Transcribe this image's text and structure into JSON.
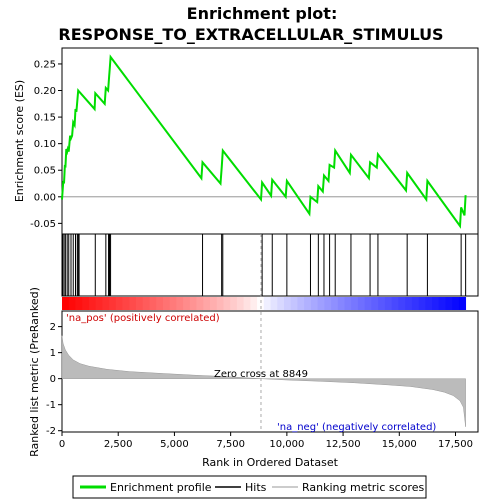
{
  "chart_data": {
    "type": "line",
    "title_line1": "Enrichment plot:",
    "title_line2": "RESPONSE_TO_EXTRACELLULAR_STIMULUS",
    "top_panel": {
      "ylabel": "Enrichment score (ES)",
      "ylim": [
        -0.07,
        0.28
      ],
      "yticks": [
        -0.05,
        0.0,
        0.05,
        0.1,
        0.15,
        0.2,
        0.25
      ],
      "ytick_labels": [
        "-0.05",
        "0.00",
        "0.05",
        "0.10",
        "0.15",
        "0.20",
        "0.25"
      ],
      "es_profile": {
        "x": [
          0,
          60,
          90,
          130,
          150,
          190,
          230,
          260,
          300,
          360,
          400,
          450,
          500,
          560,
          600,
          640,
          680,
          720,
          760,
          800,
          1450,
          1480,
          1900,
          1950,
          2050,
          2070,
          2100,
          2120,
          2160,
          6200,
          6250,
          7050,
          7100,
          7150,
          8849,
          8900,
          9300,
          9350,
          9950,
          10000,
          11000,
          11050,
          11350,
          11400,
          11600,
          11650,
          11850,
          11900,
          12100,
          12150,
          12800,
          12850,
          13650,
          13700,
          14000,
          14050,
          15300,
          15350,
          16200,
          16250,
          17700,
          17750,
          17900,
          17950
        ],
        "y": [
          -0.005,
          0.03,
          0.025,
          0.06,
          0.055,
          0.09,
          0.085,
          0.09,
          0.085,
          0.115,
          0.11,
          0.115,
          0.14,
          0.135,
          0.165,
          0.16,
          0.18,
          0.2,
          0.198,
          0.196,
          0.165,
          0.195,
          0.175,
          0.205,
          0.2,
          0.21,
          0.228,
          0.24,
          0.263,
          0.035,
          0.065,
          0.025,
          0.055,
          0.087,
          -0.005,
          0.027,
          0.002,
          0.032,
          0.0,
          0.03,
          -0.032,
          0.0,
          -0.01,
          0.02,
          0.01,
          0.04,
          0.03,
          0.06,
          0.055,
          0.087,
          0.045,
          0.079,
          0.035,
          0.065,
          0.055,
          0.08,
          0.012,
          0.045,
          -0.005,
          0.03,
          -0.055,
          -0.02,
          -0.035,
          0.003
        ]
      },
      "hits": [
        30,
        90,
        150,
        230,
        300,
        400,
        500,
        600,
        680,
        720,
        760,
        1480,
        1950,
        2070,
        2100,
        2120,
        2160,
        6250,
        7100,
        7150,
        8900,
        9350,
        10000,
        11050,
        11400,
        11650,
        11900,
        12150,
        12850,
        13700,
        14050,
        15350,
        16250,
        17750,
        17950
      ]
    },
    "bottom_panel": {
      "ylabel": "Ranked list metric (PreRanked)",
      "xlabel": "Rank in Ordered Dataset",
      "ylim": [
        -2.05,
        2.6
      ],
      "yticks": [
        -2,
        -1,
        0,
        1,
        2
      ],
      "ytick_labels": [
        "-2",
        "-1",
        "0",
        "1",
        "2"
      ],
      "xlim": [
        0,
        18500
      ],
      "xticks": [
        0,
        2500,
        5000,
        7500,
        10000,
        12500,
        15000,
        17500
      ],
      "xtick_labels": [
        "0",
        "2,500",
        "5,000",
        "7,500",
        "10,000",
        "12,500",
        "15,000",
        "17,500"
      ],
      "metric": {
        "x": [
          0,
          50,
          150,
          300,
          500,
          800,
          1200,
          2000,
          3000,
          4500,
          6000,
          7500,
          8849,
          10000,
          11500,
          13000,
          14500,
          15500,
          16500,
          17000,
          17400,
          17700,
          17850,
          17950
        ],
        "y": [
          1.65,
          1.35,
          1.1,
          0.9,
          0.72,
          0.58,
          0.48,
          0.36,
          0.27,
          0.2,
          0.13,
          0.07,
          0.0,
          -0.05,
          -0.1,
          -0.16,
          -0.24,
          -0.3,
          -0.42,
          -0.52,
          -0.65,
          -0.85,
          -1.1,
          -1.85
        ]
      },
      "zero_cross": 8849,
      "zero_cross_label": "Zero cross at 8849",
      "pos_label": "'na_pos' (positively correlated)",
      "neg_label": "'na_neg' (negatively correlated)"
    },
    "total_ranks": 17950,
    "colors": {
      "es_line": "#00dd00",
      "hit_line": "#000000",
      "metric_fill": "#bbbbbb",
      "pos_text": "#cc0000",
      "neg_text": "#0000cc",
      "zero_line": "#aaaaaa"
    },
    "legend": {
      "items": [
        {
          "label": "Enrichment profile",
          "color": "#00dd00",
          "kind": "thick-line"
        },
        {
          "label": "Hits",
          "color": "#000000",
          "kind": "thin-line"
        },
        {
          "label": "Ranking metric scores",
          "color": "#bbbbbb",
          "kind": "thin-line"
        }
      ]
    }
  }
}
